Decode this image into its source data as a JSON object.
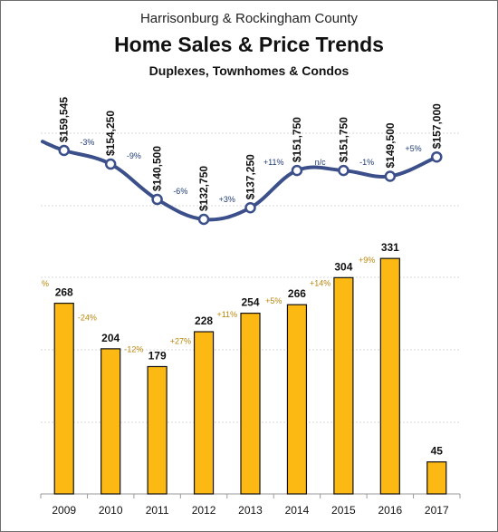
{
  "title_line1": "Harrisonburg & Rockingham County",
  "title_line2": "Home Sales & Price Trends",
  "title_line3": "Duplexes, Townhomes & Condos",
  "colors": {
    "bar_fill": "#FDB913",
    "bar_stroke": "#111111",
    "line": "#3B4F8A",
    "price_change_text": "#1F3B73",
    "sales_change_text": "#B8860B",
    "grid": "#d9d9d9"
  },
  "chart_data": [
    {
      "type": "line",
      "x": [
        "2009",
        "2010",
        "2011",
        "2012",
        "2013",
        "2014",
        "2015",
        "2016",
        "2017"
      ],
      "values": [
        159545,
        154250,
        140500,
        132750,
        137250,
        151750,
        151750,
        149500,
        157000
      ],
      "value_labels": [
        "$159,545",
        "$154,250",
        "$140,500",
        "$132,750",
        "$137,250",
        "$151,750",
        "$151,750",
        "$149,500",
        "$157,000"
      ],
      "change_labels": [
        "-3%",
        "-9%",
        "-6%",
        "+3%",
        "+11%",
        "n/c",
        "-1%",
        "+5%"
      ]
    },
    {
      "type": "bar",
      "categories": [
        "2009",
        "2010",
        "2011",
        "2012",
        "2013",
        "2014",
        "2015",
        "2016",
        "2017"
      ],
      "values": [
        268,
        204,
        179,
        228,
        254,
        266,
        304,
        331,
        45
      ],
      "value_labels": [
        "268",
        "204",
        "179",
        "228",
        "254",
        "266",
        "304",
        "331",
        "45"
      ],
      "leading_label": "%",
      "change_labels": [
        "-24%",
        "-12%",
        "+27%",
        "+11%",
        "+5%",
        "+14%",
        "+9%"
      ]
    }
  ]
}
